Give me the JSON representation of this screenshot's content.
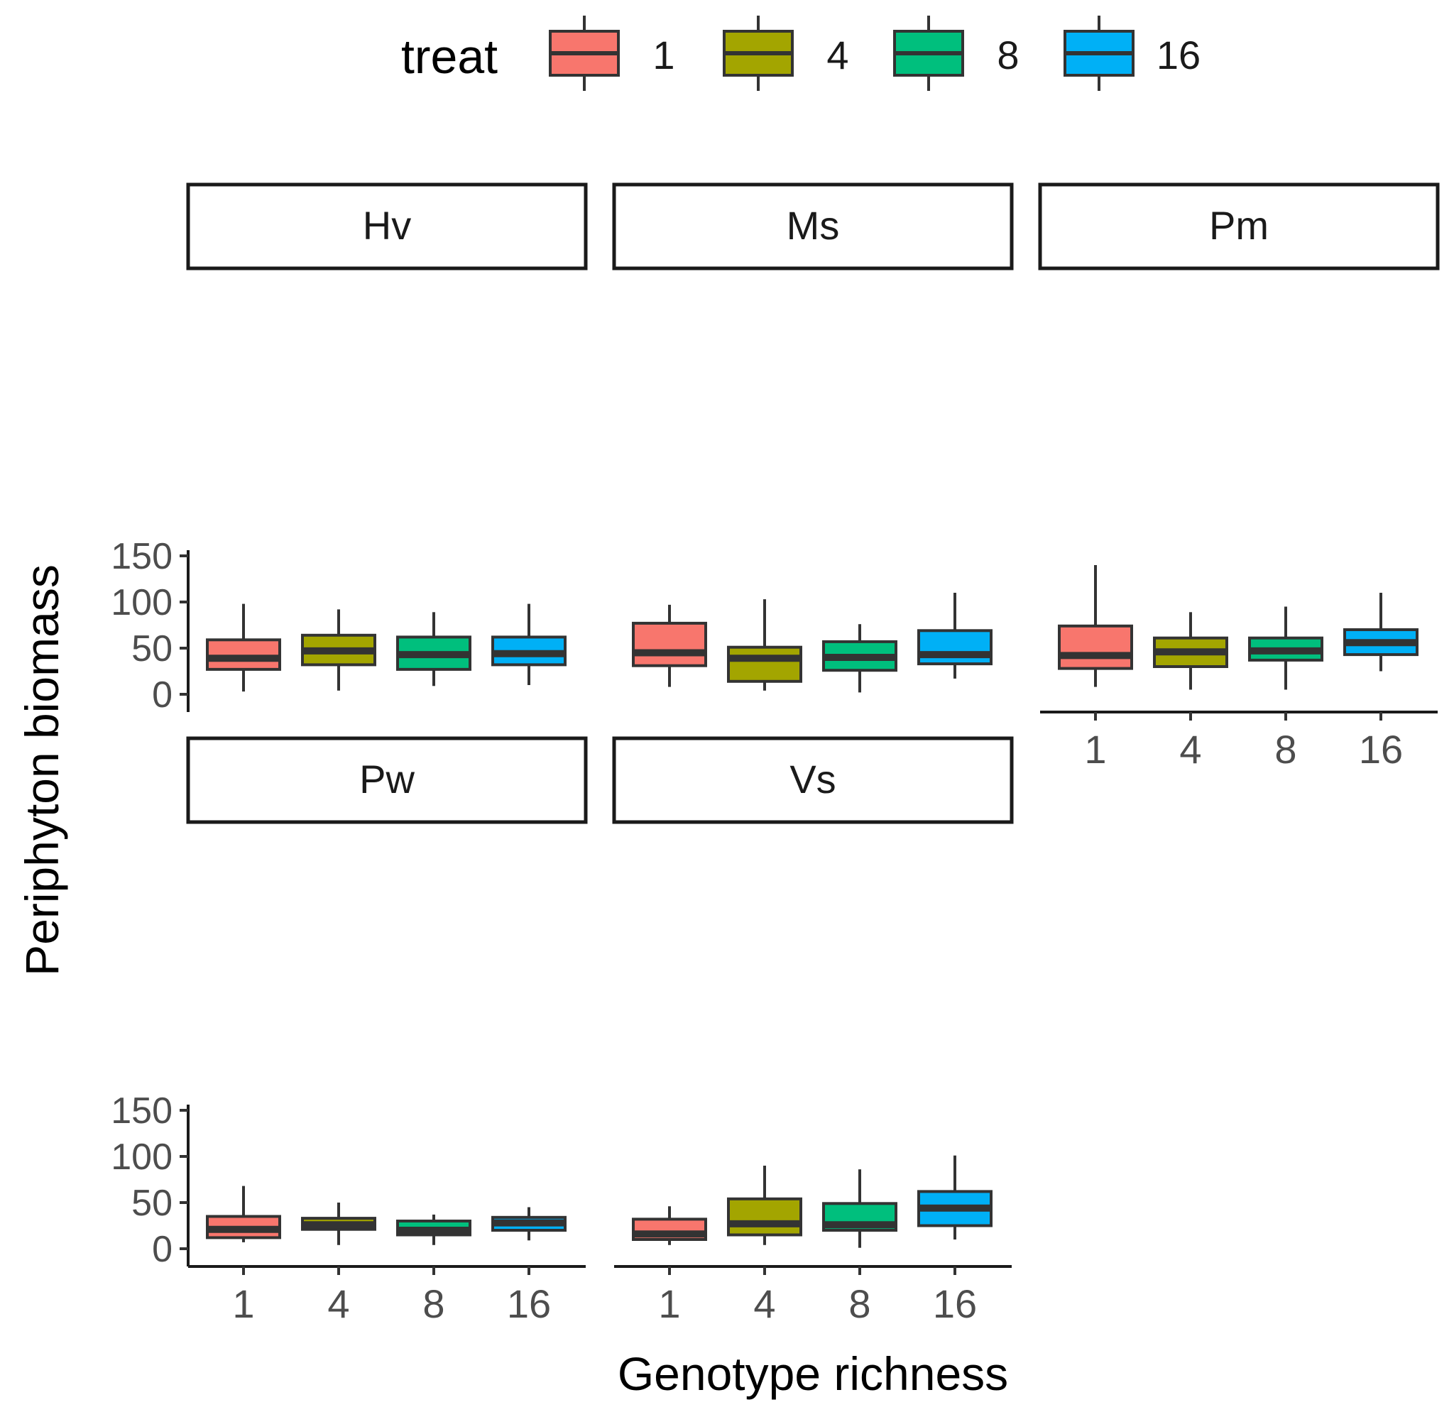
{
  "chart_data": {
    "type": "boxplot",
    "xlabel": "Genotype richness",
    "ylabel": "Periphyton biomass",
    "ylim": [
      0,
      150
    ],
    "yticks": [
      0,
      50,
      100,
      150
    ],
    "categories": [
      "1",
      "4",
      "8",
      "16"
    ],
    "legend": {
      "title": "treat",
      "placement": "top",
      "entries": [
        {
          "label": "1",
          "color": "#F8766D"
        },
        {
          "label": "4",
          "color": "#A3A500"
        },
        {
          "label": "8",
          "color": "#00BF7D"
        },
        {
          "label": "16",
          "color": "#00B0F6"
        }
      ]
    },
    "grid": false,
    "panels": [
      {
        "name": "Hv",
        "boxes": [
          {
            "min": 3,
            "q1": 27,
            "median": 39,
            "q3": 59,
            "max": 98
          },
          {
            "min": 4,
            "q1": 32,
            "median": 47,
            "q3": 64,
            "max": 92
          },
          {
            "min": 9,
            "q1": 27,
            "median": 43,
            "q3": 62,
            "max": 89
          },
          {
            "min": 10,
            "q1": 32,
            "median": 44,
            "q3": 62,
            "max": 98
          }
        ]
      },
      {
        "name": "Ms",
        "boxes": [
          {
            "min": 8,
            "q1": 31,
            "median": 45,
            "q3": 77,
            "max": 97
          },
          {
            "min": 4,
            "q1": 14,
            "median": 39,
            "q3": 51,
            "max": 103
          },
          {
            "min": 2,
            "q1": 26,
            "median": 40,
            "q3": 57,
            "max": 76
          },
          {
            "min": 17,
            "q1": 33,
            "median": 43,
            "q3": 69,
            "max": 110
          }
        ]
      },
      {
        "name": "Pm",
        "boxes": [
          {
            "min": 8,
            "q1": 28,
            "median": 42,
            "q3": 74,
            "max": 140
          },
          {
            "min": 5,
            "q1": 30,
            "median": 46,
            "q3": 61,
            "max": 89
          },
          {
            "min": 5,
            "q1": 37,
            "median": 47,
            "q3": 61,
            "max": 95
          },
          {
            "min": 25,
            "q1": 43,
            "median": 56,
            "q3": 70,
            "max": 110
          }
        ]
      },
      {
        "name": "Pw",
        "boxes": [
          {
            "min": 7,
            "q1": 12,
            "median": 21,
            "q3": 35,
            "max": 68
          },
          {
            "min": 4,
            "q1": 21,
            "median": 26,
            "q3": 33,
            "max": 50
          },
          {
            "min": 4,
            "q1": 15,
            "median": 20,
            "q3": 30,
            "max": 37
          },
          {
            "min": 9,
            "q1": 20,
            "median": 28,
            "q3": 34,
            "max": 45
          }
        ]
      },
      {
        "name": "Vs",
        "boxes": [
          {
            "min": 4,
            "q1": 10,
            "median": 16,
            "q3": 32,
            "max": 46
          },
          {
            "min": 4,
            "q1": 15,
            "median": 27,
            "q3": 54,
            "max": 90
          },
          {
            "min": 1,
            "q1": 20,
            "median": 26,
            "q3": 49,
            "max": 86
          },
          {
            "min": 10,
            "q1": 25,
            "median": 44,
            "q3": 62,
            "max": 101
          }
        ]
      }
    ]
  }
}
